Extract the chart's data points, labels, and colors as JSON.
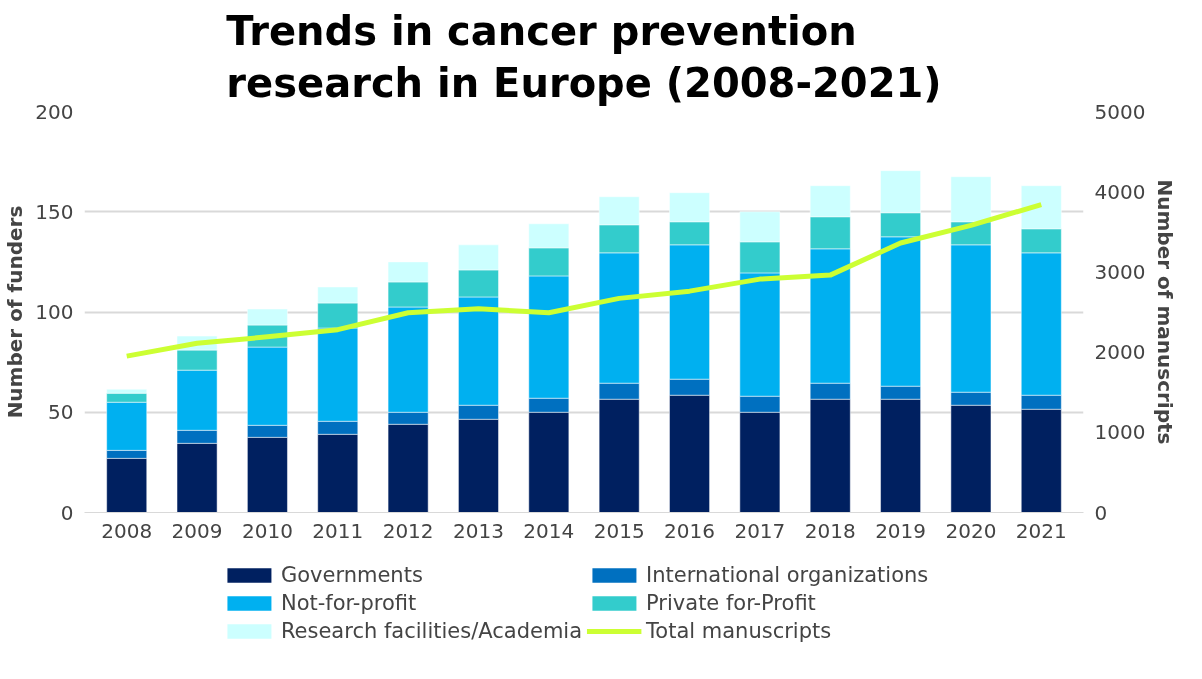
{
  "chart_data": {
    "type": "bar",
    "stacked": true,
    "title": "Trends in cancer prevention research in Europe (2008-2021)",
    "ylabel": "Number of funders",
    "y2label": "Number of manuscripts",
    "categories": [
      "2008",
      "2009",
      "2010",
      "2011",
      "2012",
      "2013",
      "2014",
      "2015",
      "2016",
      "2017",
      "2018",
      "2019",
      "2020",
      "2021"
    ],
    "ylim": [
      0,
      200
    ],
    "yticks": [
      0,
      50,
      100,
      150,
      200
    ],
    "y2lim": [
      0,
      5000
    ],
    "y2ticks": [
      0,
      1000,
      2000,
      3000,
      4000,
      5000
    ],
    "grid": "y",
    "legend": "bottom",
    "series": [
      {
        "name": "Governments",
        "color": "#002060",
        "values": [
          27,
          34.5,
          37.5,
          39,
          44,
          46.5,
          50,
          56.5,
          58.5,
          50,
          56.5,
          56.5,
          53.5,
          51.5
        ]
      },
      {
        "name": "International organizations",
        "color": "#0070c0",
        "values": [
          4,
          6.5,
          6,
          6.5,
          6,
          7,
          7,
          8,
          8,
          8,
          8,
          6.5,
          6.5,
          7
        ]
      },
      {
        "name": "Not-for-profit",
        "color": "#00b0f0",
        "values": [
          24,
          30,
          39,
          46.5,
          52.5,
          54,
          61,
          65,
          67,
          61.5,
          67,
          74.5,
          73.5,
          71
        ]
      },
      {
        "name": "Private for-Profit",
        "color": "#33cccc",
        "values": [
          4.5,
          10,
          11,
          12.5,
          12.5,
          13.5,
          14,
          14,
          11.5,
          15.5,
          16,
          12,
          11.5,
          12
        ]
      },
      {
        "name": "Research facilities/Academia",
        "color": "#ccffff",
        "values": [
          2,
          7,
          8,
          8,
          10,
          12.5,
          12,
          14,
          14.5,
          15,
          15.5,
          21,
          22.5,
          21.5
        ]
      },
      {
        "name": "Total manuscripts",
        "type": "line",
        "axis": "y2",
        "color": "#ccff33",
        "values": [
          1950,
          2110,
          2190,
          2280,
          2490,
          2540,
          2490,
          2670,
          2760,
          2910,
          2960,
          3360,
          3580,
          3840
        ]
      }
    ]
  }
}
